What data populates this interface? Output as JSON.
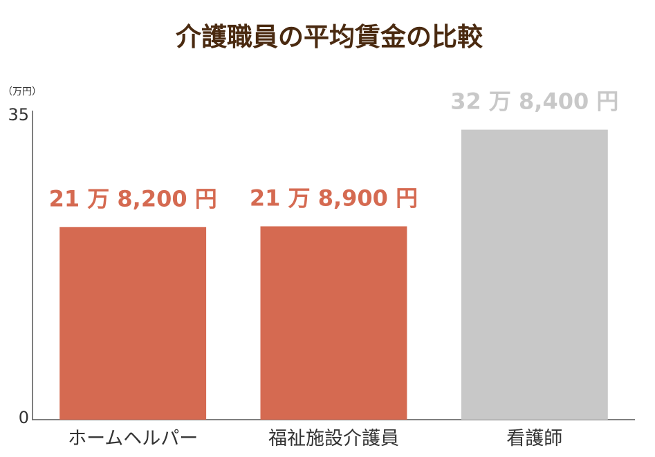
{
  "chart_data": {
    "type": "bar",
    "title": "介護職員の平均賃金の比較",
    "unit_label": "（万円）",
    "categories": [
      "ホームヘルパー",
      "福祉施設介護員",
      "看護師"
    ],
    "values": [
      21.82,
      21.89,
      32.84
    ],
    "data_labels": [
      "21 万 8,200 円",
      "21 万 8,900 円",
      "32 万 8,400 円"
    ],
    "colors": [
      "#d56a51",
      "#d56a51",
      "#c8c8c8"
    ],
    "ylim": [
      0,
      35
    ],
    "yticks": [
      "0",
      "35"
    ],
    "grid": false,
    "legend": "none"
  }
}
